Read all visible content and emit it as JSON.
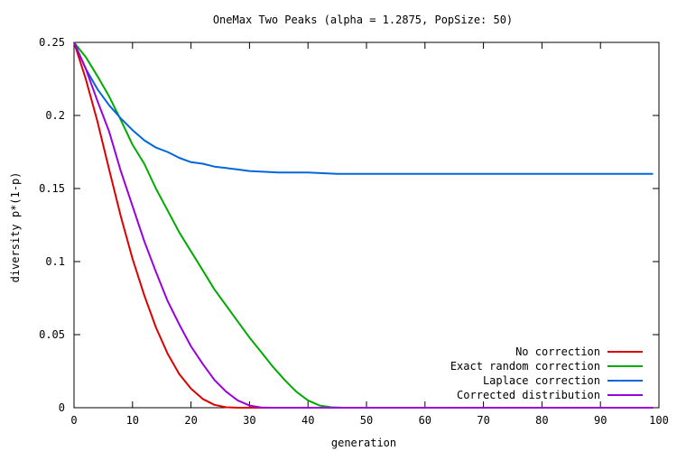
{
  "chart_data": {
    "type": "line",
    "title": "OneMax Two Peaks (alpha = 1.2875, PopSize: 50)",
    "xlabel": "generation",
    "ylabel": "diversity p*(1-p)",
    "xlim": [
      0,
      100
    ],
    "ylim": [
      0,
      0.25
    ],
    "x_ticks": [
      0,
      10,
      20,
      30,
      40,
      50,
      60,
      70,
      80,
      90,
      100
    ],
    "y_ticks": [
      0,
      0.05,
      0.1,
      0.15,
      0.2,
      0.25
    ],
    "x_tick_labels": [
      "0",
      "10",
      "20",
      "30",
      "40",
      "50",
      "60",
      "70",
      "80",
      "90",
      "100"
    ],
    "y_tick_labels": [
      "0",
      "0.05",
      "0.1",
      "0.15",
      "0.2",
      "0.25"
    ],
    "grid": false,
    "legend_position": "bottom-right",
    "series": [
      {
        "name": "No correction",
        "color": "#dd0000",
        "x": [
          0,
          2,
          4,
          6,
          8,
          10,
          12,
          14,
          16,
          18,
          20,
          22,
          24,
          26,
          28,
          30,
          35,
          40,
          50,
          60,
          70,
          80,
          90,
          99
        ],
        "y": [
          0.25,
          0.225,
          0.196,
          0.163,
          0.131,
          0.102,
          0.077,
          0.055,
          0.037,
          0.023,
          0.013,
          0.006,
          0.002,
          0.0003,
          0,
          0,
          0,
          0,
          0,
          0,
          0,
          0,
          0,
          0
        ]
      },
      {
        "name": "Exact random correction",
        "color": "#00aa00",
        "x": [
          0,
          2,
          4,
          6,
          8,
          10,
          12,
          14,
          16,
          18,
          20,
          22,
          24,
          26,
          28,
          30,
          32,
          34,
          36,
          38,
          40,
          42,
          44,
          46,
          50,
          60,
          70,
          80,
          90,
          99
        ],
        "y": [
          0.25,
          0.24,
          0.227,
          0.213,
          0.197,
          0.18,
          0.167,
          0.15,
          0.135,
          0.12,
          0.107,
          0.094,
          0.081,
          0.07,
          0.059,
          0.048,
          0.038,
          0.028,
          0.019,
          0.011,
          0.005,
          0.0015,
          0.0003,
          0,
          0,
          0,
          0,
          0,
          0,
          0
        ]
      },
      {
        "name": "Laplace correction",
        "color": "#0066dd",
        "x": [
          0,
          2,
          4,
          6,
          8,
          10,
          12,
          14,
          16,
          18,
          20,
          22,
          24,
          26,
          28,
          30,
          35,
          40,
          45,
          50,
          55,
          60,
          65,
          70,
          75,
          80,
          85,
          90,
          95,
          99
        ],
        "y": [
          0.25,
          0.232,
          0.218,
          0.207,
          0.198,
          0.19,
          0.183,
          0.178,
          0.175,
          0.171,
          0.168,
          0.167,
          0.165,
          0.164,
          0.163,
          0.162,
          0.161,
          0.161,
          0.16,
          0.16,
          0.16,
          0.16,
          0.16,
          0.16,
          0.16,
          0.16,
          0.16,
          0.16,
          0.16,
          0.16
        ]
      },
      {
        "name": "Corrected distribution",
        "color": "#9900dd",
        "x": [
          0,
          2,
          4,
          6,
          8,
          10,
          12,
          14,
          16,
          18,
          20,
          22,
          24,
          26,
          28,
          30,
          32,
          34,
          40,
          50,
          60,
          70,
          80,
          90,
          99
        ],
        "y": [
          0.25,
          0.232,
          0.21,
          0.189,
          0.162,
          0.138,
          0.114,
          0.093,
          0.073,
          0.057,
          0.042,
          0.03,
          0.019,
          0.011,
          0.005,
          0.0015,
          0.0002,
          0,
          0,
          0,
          0,
          0,
          0,
          0,
          0
        ]
      }
    ]
  }
}
